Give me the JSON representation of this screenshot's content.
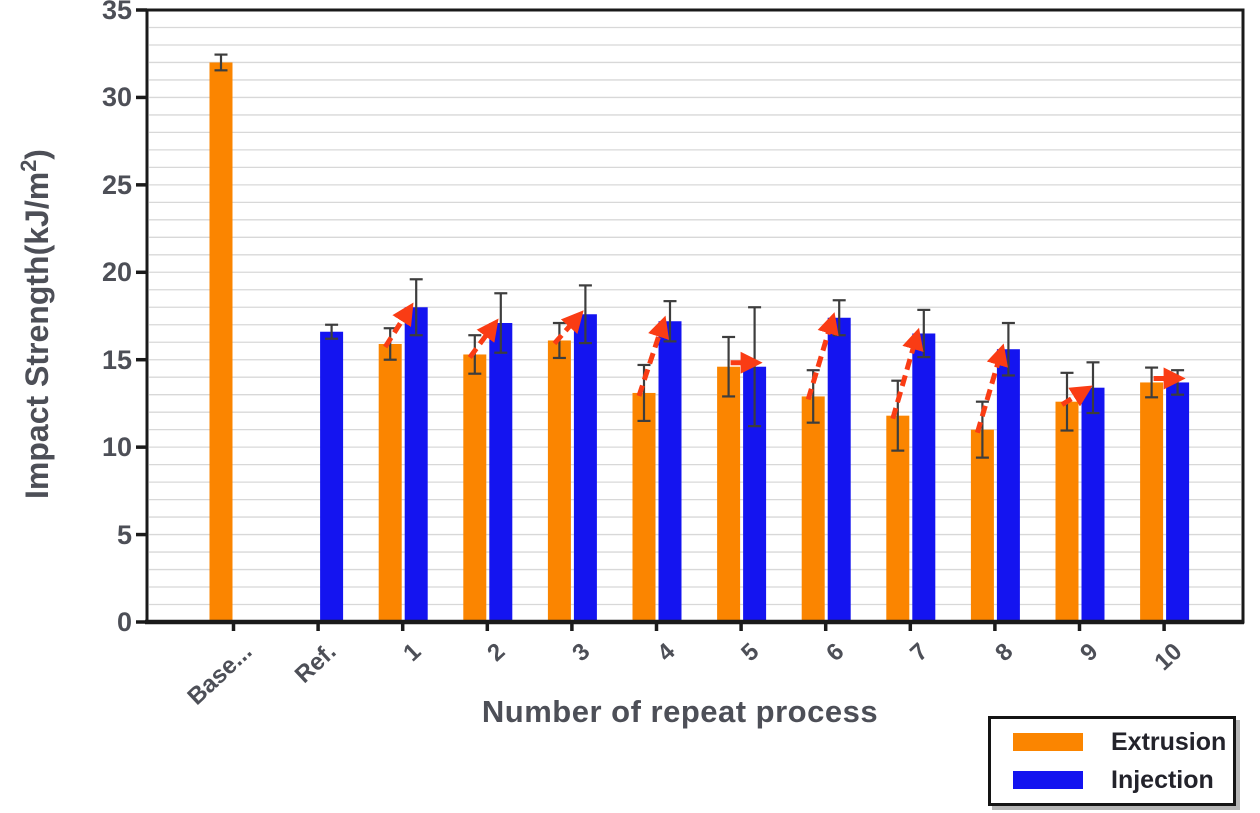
{
  "chart_data": {
    "type": "bar",
    "title": "",
    "xlabel": "Number of repeat process",
    "ylabel": {
      "prefix": "Impact Strength(kJ/m",
      "sup": "2",
      "suffix": ")"
    },
    "categories": [
      "Base...",
      "Ref.",
      "1",
      "2",
      "3",
      "4",
      "5",
      "6",
      "7",
      "8",
      "9",
      "10"
    ],
    "y_ticks": [
      0,
      5,
      10,
      15,
      20,
      25,
      30,
      35
    ],
    "ylim": [
      0,
      35
    ],
    "minor_gridline_step": 1,
    "grid": "horizontal minor gridlines every 1 unit",
    "legend_position": "bottom-right",
    "series": [
      {
        "name": "Extrusion",
        "color": "#FB8500",
        "values": [
          32.0,
          null,
          15.9,
          15.3,
          16.1,
          13.1,
          14.6,
          12.9,
          11.8,
          11.0,
          12.6,
          13.7
        ],
        "errors": [
          0.45,
          null,
          0.9,
          1.1,
          1.0,
          1.6,
          1.7,
          1.5,
          2.0,
          1.6,
          1.65,
          0.85
        ]
      },
      {
        "name": "Injection",
        "color": "#1414F0",
        "values": [
          null,
          16.6,
          18.0,
          17.1,
          17.6,
          17.2,
          14.6,
          17.4,
          16.5,
          15.6,
          13.4,
          13.7
        ],
        "errors": [
          null,
          0.4,
          1.6,
          1.7,
          1.65,
          1.15,
          3.4,
          1.0,
          1.35,
          1.5,
          1.45,
          0.7
        ]
      }
    ],
    "arrows": {
      "color": "#FA3C14",
      "style": "dashed",
      "description": "Red dashed arrows from Extrusion bar top to Injection bar top for repeat processes 1-10"
    },
    "colors": {
      "grid": "#d8d8d8",
      "axis": "#1a1a1a",
      "text": "#4d4f57",
      "error_bar": "#3d3d3d",
      "background": "#ffffff"
    }
  }
}
